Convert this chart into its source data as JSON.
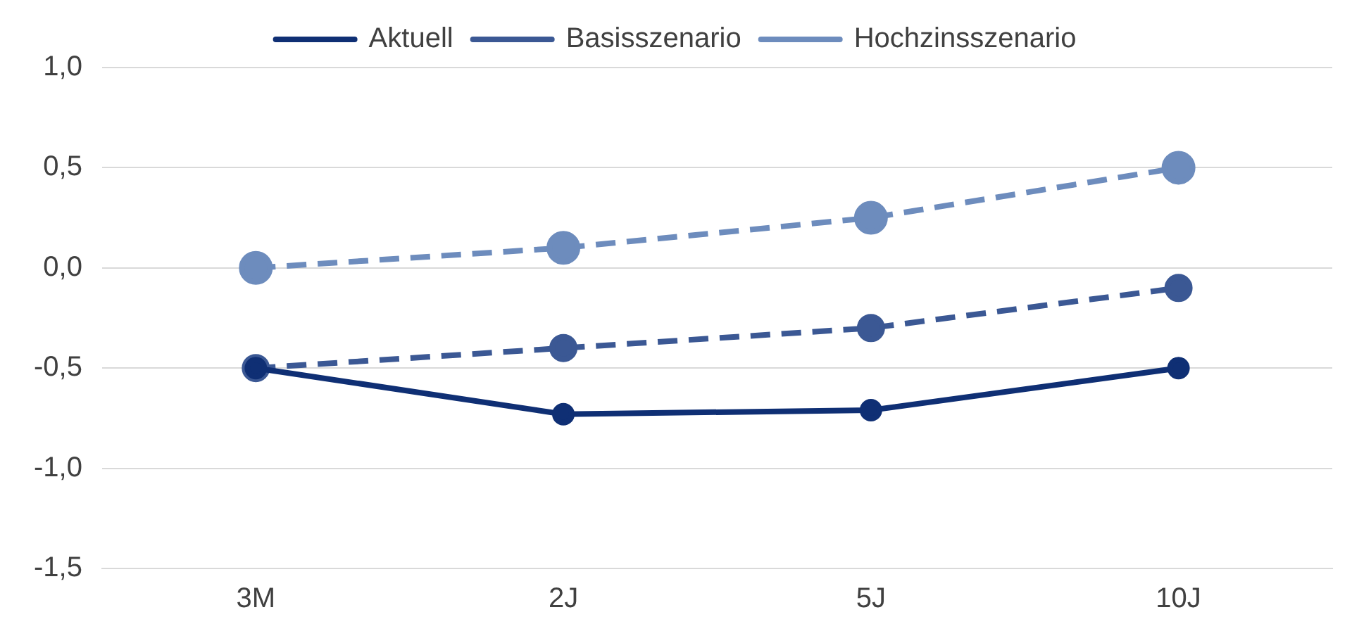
{
  "chart_data": {
    "type": "line",
    "categories": [
      "3M",
      "2J",
      "5J",
      "10J"
    ],
    "series": [
      {
        "name": "Aktuell",
        "color": "#0f2f74",
        "line_style": "solid",
        "values": [
          -0.5,
          -0.73,
          -0.71,
          -0.5
        ]
      },
      {
        "name": "Basisszenario",
        "color": "#3b5894",
        "line_style": "dashed",
        "values": [
          -0.5,
          -0.4,
          -0.3,
          -0.1
        ]
      },
      {
        "name": "Hochzinsszenario",
        "color": "#6d8cbd",
        "line_style": "dashed",
        "values": [
          0,
          0.1,
          0.25,
          0.5
        ]
      }
    ],
    "ylim": [
      -1.5,
      1.0
    ],
    "yticks": [
      {
        "value": -1.5,
        "label": "-1,5"
      },
      {
        "value": -1,
        "label": "-1,0"
      },
      {
        "value": -0.5,
        "label": "-0,5"
      },
      {
        "value": 0,
        "label": "0,0"
      },
      {
        "value": 0.5,
        "label": "0,5"
      },
      {
        "value": 1,
        "label": "1,0"
      }
    ],
    "grid": "y",
    "legend": "top",
    "marker": "circle"
  }
}
